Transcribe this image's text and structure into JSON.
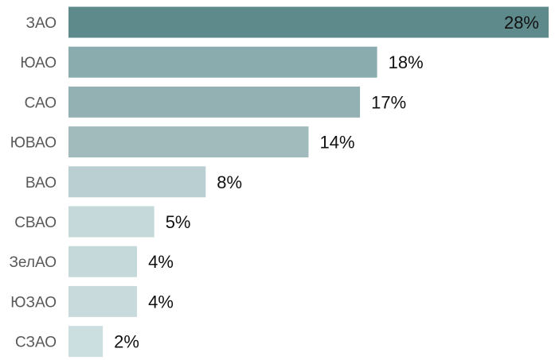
{
  "chart_data": {
    "type": "bar",
    "orientation": "horizontal",
    "title": "",
    "xlabel": "",
    "ylabel": "",
    "categories": [
      "ЗАО",
      "ЮАО",
      "САО",
      "ЮВАО",
      "ВАО",
      "СВАО",
      "ЗелАО",
      "ЮЗАО",
      "СЗАО"
    ],
    "values": [
      28,
      18,
      17,
      14,
      8,
      5,
      4,
      4,
      2
    ],
    "value_labels": [
      "28%",
      "18%",
      "17%",
      "14%",
      "8%",
      "5%",
      "4%",
      "4%",
      "2%"
    ],
    "colors": [
      "#5f8a8b",
      "#8aacae",
      "#93b1b3",
      "#a1bbbd",
      "#b9cfd1",
      "#c5d8da",
      "#c5d8da",
      "#c8dadc",
      "#cbdfe1"
    ],
    "xlim": [
      0,
      28
    ],
    "grid": false,
    "legend": "none",
    "axis_visible": false
  }
}
